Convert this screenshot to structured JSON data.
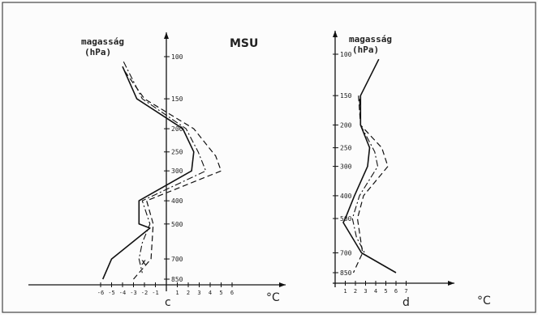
{
  "figure": {
    "title": "MSU",
    "marker_label": "x"
  },
  "chart_data": [
    {
      "type": "line",
      "panel_label": "c",
      "ylabel": "magasság\n(hPa)",
      "xlabel": "°C",
      "xlim": [
        -7,
        8
      ],
      "x_ticks": [
        -6,
        -5,
        -4,
        -3,
        -2,
        -1,
        1,
        2,
        3,
        4,
        5,
        6
      ],
      "x_tick_labels": [
        "-6",
        "-5",
        "-4",
        "-3",
        "-2",
        "-1",
        "1",
        "2",
        "3",
        "4",
        "5",
        "6"
      ],
      "y_ticks": [
        100,
        150,
        200,
        250,
        300,
        400,
        500,
        700,
        850
      ],
      "y_tick_labels": [
        "100",
        "150",
        "200",
        "250",
        "300",
        "400",
        "500",
        "700",
        "850"
      ],
      "series": [
        {
          "style": "solid",
          "points": [
            [
              -4,
              110
            ],
            [
              -2.7,
              150
            ],
            [
              1.5,
              200
            ],
            [
              2.5,
              250
            ],
            [
              2.3,
              300
            ],
            [
              -2.5,
              400
            ],
            [
              -2.5,
              500
            ],
            [
              -1.5,
              520
            ],
            [
              -5,
              700
            ],
            [
              -5.8,
              850
            ]
          ]
        },
        {
          "style": "dashed",
          "points": [
            [
              -3.8,
              115
            ],
            [
              -2,
              150
            ],
            [
              2.5,
              200
            ],
            [
              4.5,
              260
            ],
            [
              5,
              300
            ],
            [
              -1.8,
              400
            ],
            [
              -1.2,
              500
            ],
            [
              -1.4,
              700
            ],
            [
              -3,
              850
            ]
          ]
        },
        {
          "style": "dashdot",
          "points": [
            [
              -3.9,
              105
            ],
            [
              -2.2,
              150
            ],
            [
              1.8,
              200
            ],
            [
              2.9,
              250
            ],
            [
              3.6,
              300
            ],
            [
              -2.2,
              400
            ],
            [
              -1.5,
              500
            ],
            [
              -2.2,
              600
            ],
            [
              -2.5,
              700
            ],
            [
              -2.2,
              800
            ]
          ]
        }
      ]
    },
    {
      "type": "line",
      "panel_label": "d",
      "ylabel": "magasság\n(hPa)",
      "xlabel": "°C",
      "xlim": [
        -0.5,
        8
      ],
      "x_ticks": [
        1,
        2,
        3,
        4,
        5,
        6,
        7
      ],
      "x_tick_labels": [
        "1",
        "2",
        "3",
        "4",
        "5",
        "6",
        "7"
      ],
      "y_ticks": [
        100,
        150,
        200,
        250,
        300,
        400,
        500,
        700,
        850
      ],
      "y_tick_labels": [
        "100",
        "150",
        "200",
        "250",
        "300",
        "400",
        "500",
        "700",
        "850"
      ],
      "series": [
        {
          "style": "solid",
          "points": [
            [
              4.3,
              105
            ],
            [
              2.5,
              150
            ],
            [
              2.5,
              200
            ],
            [
              3.4,
              250
            ],
            [
              3.2,
              300
            ],
            [
              1.9,
              400
            ],
            [
              1,
              500
            ],
            [
              0.8,
              520
            ],
            [
              2.6,
              700
            ],
            [
              6,
              850
            ]
          ]
        },
        {
          "style": "dashed",
          "points": [
            [
              2.3,
              150
            ],
            [
              2.5,
              200
            ],
            [
              4.6,
              250
            ],
            [
              5.2,
              300
            ],
            [
              2.8,
              400
            ],
            [
              2.2,
              500
            ],
            [
              2.7,
              700
            ],
            [
              1.8,
              850
            ]
          ]
        },
        {
          "style": "dashdot",
          "points": [
            [
              2.4,
              155
            ],
            [
              2.5,
              200
            ],
            [
              3.9,
              260
            ],
            [
              4.2,
              300
            ],
            [
              2.4,
              400
            ],
            [
              1.7,
              500
            ],
            [
              2.1,
              600
            ],
            [
              2.9,
              700
            ]
          ]
        }
      ]
    }
  ]
}
